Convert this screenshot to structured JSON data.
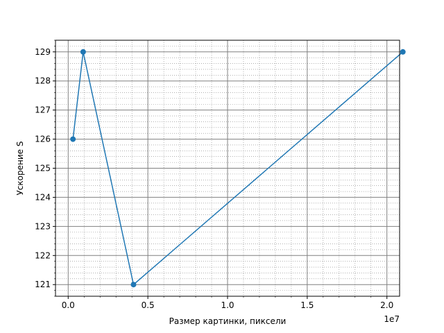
{
  "chart_data": {
    "type": "line",
    "title": "",
    "xlabel": "Размер картинки, пиксели",
    "ylabel": "Ускорение S",
    "x_offset_label": "1e7",
    "xlim": [
      -0.0796,
      2.0796
    ],
    "ylim": [
      120.6,
      129.4
    ],
    "x_major_ticks": [
      0.0,
      0.5,
      1.0,
      1.5,
      2.0
    ],
    "x_tick_labels": [
      "0.0",
      "0.5",
      "1.0",
      "1.5",
      "2.0"
    ],
    "y_major_ticks": [
      121,
      122,
      123,
      124,
      125,
      126,
      127,
      128,
      129
    ],
    "y_tick_labels": [
      "121",
      "122",
      "123",
      "124",
      "125",
      "126",
      "127",
      "128",
      "129"
    ],
    "x_minor_step": 0.1,
    "y_minor_step": 0.2,
    "grid": true,
    "series": [
      {
        "x": [
          0.03,
          0.094,
          0.41,
          2.1
        ],
        "y": [
          126,
          129,
          121,
          129
        ],
        "color": "#1f77b4",
        "marker": "circle"
      }
    ]
  }
}
